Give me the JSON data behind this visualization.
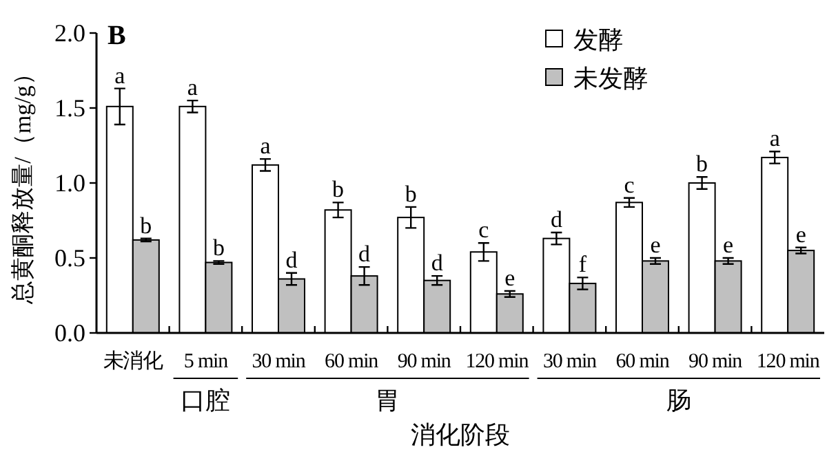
{
  "chart_data": {
    "type": "bar",
    "title": "B",
    "xlabel": "消化阶段",
    "ylabel": "总黄酮释放量/（mg/g）",
    "categories": [
      "未消化",
      "5 min",
      "30 min",
      "60 min",
      "90 min",
      "120 min",
      "30 min",
      "60 min",
      "90 min",
      "120 min"
    ],
    "series": [
      {
        "name": "发酵",
        "color": "#ffffff",
        "values": [
          1.51,
          1.51,
          1.12,
          0.82,
          0.77,
          0.54,
          0.63,
          0.87,
          1.0,
          1.17
        ],
        "errors": [
          0.12,
          0.04,
          0.04,
          0.05,
          0.07,
          0.06,
          0.04,
          0.03,
          0.04,
          0.04
        ],
        "value_labels": [
          "a",
          "a",
          "a",
          "b",
          "b",
          "c",
          "d",
          "c",
          "b",
          "a"
        ]
      },
      {
        "name": "未发酵",
        "color": "#c0c0c0",
        "values": [
          0.62,
          0.47,
          0.36,
          0.38,
          0.35,
          0.26,
          0.33,
          0.48,
          0.48,
          0.55
        ],
        "errors": [
          0.01,
          0.01,
          0.04,
          0.06,
          0.03,
          0.02,
          0.04,
          0.02,
          0.02,
          0.02
        ],
        "value_labels": [
          "b",
          "b",
          "d",
          "d",
          "d",
          "e",
          "f",
          "e",
          "e",
          "e"
        ]
      }
    ],
    "annotations": [
      "口腔",
      "胃",
      "肠"
    ],
    "ylim": [
      0,
      2.0
    ],
    "yticks": [
      {
        "value": 0,
        "label": "0.0"
      },
      {
        "value": 0.5,
        "label": "0.5"
      },
      {
        "value": 1.0,
        "label": "1.0"
      },
      {
        "value": 1.5,
        "label": "1.5"
      },
      {
        "value": 2.0,
        "label": "2.0"
      }
    ],
    "legend": "top right",
    "grid": false
  }
}
